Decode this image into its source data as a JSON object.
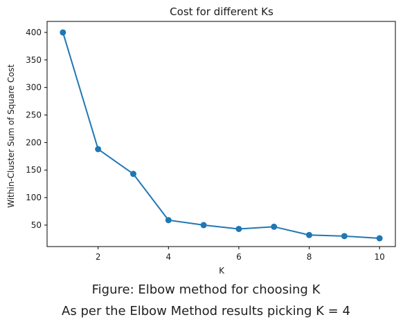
{
  "chart_data": {
    "type": "line",
    "title": "Cost for different Ks",
    "xlabel": "K",
    "ylabel": "Within-Cluster Sum of Square Cost",
    "x": [
      1,
      2,
      3,
      4,
      5,
      6,
      7,
      8,
      9,
      10
    ],
    "series": [
      {
        "values": [
          400,
          188,
          143,
          59,
          50,
          43,
          47,
          32,
          30,
          26
        ]
      }
    ],
    "xlim": [
      0.55,
      10.45
    ],
    "ylim": [
      11,
      420
    ],
    "xticks": [
      2,
      4,
      6,
      8,
      10
    ],
    "yticks": [
      50,
      100,
      150,
      200,
      250,
      300,
      350,
      400
    ],
    "grid": false,
    "color": "#1f77b4"
  },
  "caption": {
    "title": "Figure: Elbow method for choosing K",
    "note": "As per the Elbow Method results picking K = 4"
  }
}
